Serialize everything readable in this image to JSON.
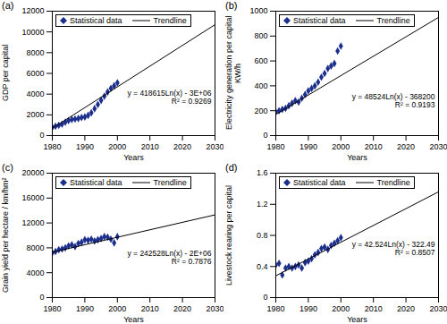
{
  "chart_data": [
    {
      "type": "scatter",
      "title": "(a)",
      "xlabel": "Years",
      "ylabel": "GDP  per capital",
      "xlim": [
        1980,
        2030
      ],
      "xticks": [
        1980,
        1990,
        2000,
        2010,
        2020,
        2030
      ],
      "ylim": [
        0,
        12000
      ],
      "yticks": [
        0,
        2000,
        4000,
        6000,
        8000,
        10000,
        12000
      ],
      "legend": "top-left",
      "annotations": [
        "y = 418615Ln(x) - 3E+06",
        "R² = 0.9269"
      ],
      "series": [
        {
          "name": "Statistical data",
          "type": "scatter",
          "marker": "diamond",
          "color": "#1c2f8c",
          "x": [
            1980,
            1981,
            1982,
            1983,
            1984,
            1985,
            1986,
            1987,
            1988,
            1989,
            1990,
            1991,
            1992,
            1993,
            1994,
            1995,
            1996,
            1997,
            1998,
            1999,
            2000
          ],
          "values": [
            800,
            900,
            1000,
            1100,
            1300,
            1450,
            1550,
            1600,
            1650,
            1750,
            1800,
            1950,
            2200,
            2600,
            3000,
            3400,
            3800,
            4200,
            4550,
            4800,
            5100
          ]
        },
        {
          "name": "Trendline",
          "type": "line",
          "line_style": "solid",
          "color": "#000000",
          "x": [
            1980,
            2030
          ],
          "values": [
            700,
            10700
          ]
        }
      ]
    },
    {
      "type": "scatter",
      "title": "(b)",
      "xlabel": "Years",
      "ylabel": "Electricity generation per capital\nKW/h",
      "xlim": [
        1980,
        2030
      ],
      "xticks": [
        1980,
        1990,
        2000,
        2010,
        2020,
        2030
      ],
      "ylim": [
        0,
        1000
      ],
      "yticks": [
        0,
        200,
        400,
        600,
        800,
        1000
      ],
      "legend": "top-left",
      "annotations": [
        "y = 48524Ln(x) - 368200",
        "R² = 0.9193"
      ],
      "series": [
        {
          "name": "Statistical data",
          "type": "scatter",
          "marker": "diamond",
          "color": "#1c2f8c",
          "x": [
            1980,
            1981,
            1982,
            1983,
            1984,
            1985,
            1986,
            1987,
            1988,
            1989,
            1990,
            1991,
            1992,
            1993,
            1994,
            1995,
            1996,
            1997,
            1998,
            1999,
            2000
          ],
          "values": [
            190,
            200,
            210,
            220,
            240,
            260,
            280,
            270,
            300,
            330,
            360,
            380,
            400,
            430,
            470,
            500,
            540,
            560,
            580,
            680,
            720
          ]
        },
        {
          "name": "Trendline",
          "type": "line",
          "line_style": "solid",
          "color": "#000000",
          "x": [
            1980,
            2030
          ],
          "values": [
            170,
            950
          ]
        }
      ]
    },
    {
      "type": "scatter",
      "title": "(c)",
      "xlabel": "Years",
      "ylabel": "Grain yield per hectare / km/hm²",
      "xlim": [
        1980,
        2030
      ],
      "xticks": [
        1980,
        1990,
        2000,
        2010,
        2020,
        2030
      ],
      "ylim": [
        0,
        20000
      ],
      "yticks": [
        0,
        4000,
        8000,
        12000,
        16000,
        20000
      ],
      "legend": "top-left",
      "annotations": [
        "y = 242528Ln(x) - 2E+06",
        "R² = 0.7876"
      ],
      "series": [
        {
          "name": "Statistical data",
          "type": "scatter",
          "marker": "diamond",
          "color": "#1c2f8c",
          "x": [
            1980,
            1981,
            1982,
            1983,
            1984,
            1985,
            1986,
            1987,
            1988,
            1989,
            1990,
            1991,
            1992,
            1993,
            1994,
            1995,
            1996,
            1997,
            1998,
            1999,
            2000
          ],
          "values": [
            7200,
            7400,
            7700,
            7800,
            8000,
            8300,
            8500,
            8200,
            8700,
            8900,
            9300,
            9200,
            9400,
            9100,
            9300,
            9500,
            9800,
            9700,
            9400,
            8800,
            9800
          ]
        },
        {
          "name": "Trendline",
          "type": "line",
          "line_style": "solid",
          "color": "#000000",
          "x": [
            1980,
            2030
          ],
          "values": [
            7300,
            13300
          ]
        }
      ]
    },
    {
      "type": "scatter",
      "title": "(d)",
      "xlabel": "Years",
      "ylabel": "Livestock rearing  per capital",
      "xlim": [
        1980,
        2030
      ],
      "xticks": [
        1980,
        1990,
        2000,
        2010,
        2020,
        2030
      ],
      "ylim": [
        0,
        1.6
      ],
      "yticks": [
        0,
        0.4,
        0.8,
        1.2,
        1.6
      ],
      "legend": "top-left",
      "annotations": [
        "y = 42.524Ln(x) - 322.49",
        "R² = 0.8507"
      ],
      "series": [
        {
          "name": "Statistical data",
          "type": "scatter",
          "marker": "diamond",
          "color": "#1c2f8c",
          "x": [
            1980,
            1981,
            1982,
            1983,
            1984,
            1985,
            1986,
            1987,
            1988,
            1989,
            1990,
            1991,
            1992,
            1993,
            1994,
            1995,
            1996,
            1997,
            1998,
            1999,
            2000
          ],
          "values": [
            0.42,
            0.44,
            0.29,
            0.38,
            0.4,
            0.38,
            0.4,
            0.42,
            0.38,
            0.45,
            0.47,
            0.5,
            0.55,
            0.58,
            0.63,
            0.65,
            0.62,
            0.67,
            0.7,
            0.73,
            0.77
          ]
        },
        {
          "name": "Trendline",
          "type": "line",
          "line_style": "solid",
          "color": "#000000",
          "x": [
            1980,
            2030
          ],
          "values": [
            0.28,
            1.36
          ]
        }
      ]
    }
  ]
}
